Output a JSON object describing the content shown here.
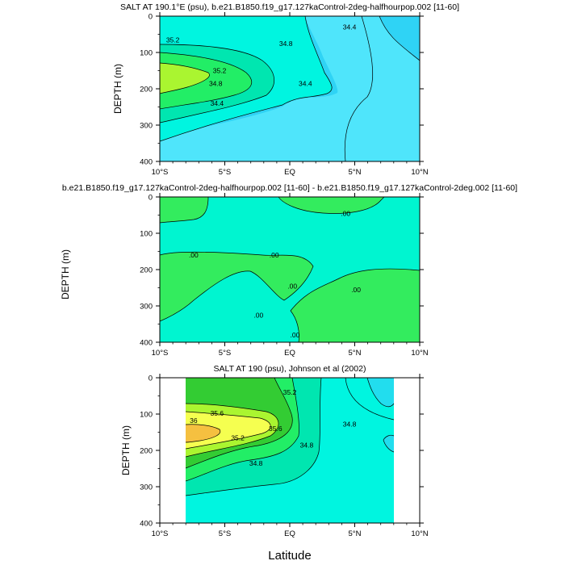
{
  "figure": {
    "xlabel": "Latitude"
  },
  "chart_data": [
    {
      "type": "contour",
      "title": "SALT AT 190.1°E (psu), b.e21.B1850.f19_g17.127kaControl-2deg-halfhourpop.002 [11-60]",
      "xlabel": "",
      "ylabel": "DEPTH (m)",
      "x_ticks": [
        "10°S",
        "5°S",
        "EQ",
        "5°N",
        "10°N"
      ],
      "x_tick_values": [
        -10,
        -5,
        0,
        5,
        10
      ],
      "y_ticks": [
        "0",
        "100",
        "200",
        "300",
        "400"
      ],
      "y_tick_values": [
        0,
        100,
        200,
        300,
        400
      ],
      "xlim": [
        -10,
        10
      ],
      "ylim": [
        400,
        0
      ],
      "contour_labels": [
        {
          "text": "35.2",
          "x": -9.0,
          "y": 65
        },
        {
          "text": "34.8",
          "x": -0.3,
          "y": 75
        },
        {
          "text": "34.4",
          "x": 4.6,
          "y": 30
        },
        {
          "text": "35.2",
          "x": -5.4,
          "y": 150
        },
        {
          "text": "34.8",
          "x": -5.7,
          "y": 185
        },
        {
          "text": "34.4",
          "x": -5.6,
          "y": 240
        },
        {
          "text": "34.4",
          "x": 1.2,
          "y": 185
        }
      ]
    },
    {
      "type": "contour",
      "title": "b.e21.B1850.f19_g17.127kaControl-2deg-halfhourpop.002 [11-60] - b.e21.B1850.f19_g17.127kaControl-2deg.002 [11-60]",
      "xlabel": "",
      "ylabel": "DEPTH (m)",
      "x_ticks": [
        "10°S",
        "5°S",
        "EQ",
        "5°N",
        "10°N"
      ],
      "x_tick_values": [
        -10,
        -5,
        0,
        5,
        10
      ],
      "y_ticks": [
        "0",
        "100",
        "200",
        "300",
        "400"
      ],
      "y_tick_values": [
        0,
        100,
        200,
        300,
        400
      ],
      "xlim": [
        -10,
        10
      ],
      "ylim": [
        400,
        0
      ],
      "contour_labels": [
        {
          "text": ".00",
          "x": 4.3,
          "y": 45
        },
        {
          "text": ".00",
          "x": -7.4,
          "y": 160
        },
        {
          "text": ".00",
          "x": -1.2,
          "y": 160
        },
        {
          "text": ".00",
          "x": 0.2,
          "y": 245
        },
        {
          "text": ".00",
          "x": 5.1,
          "y": 255
        },
        {
          "text": ".00",
          "x": -2.4,
          "y": 325
        },
        {
          "text": ".00",
          "x": 0.4,
          "y": 380
        }
      ]
    },
    {
      "type": "contour",
      "title": "SALT AT 190 (psu), Johnson et al (2002)",
      "xlabel": "",
      "ylabel": "DEPTH (m)",
      "x_ticks": [
        "10°S",
        "5°S",
        "EQ",
        "5°N",
        "10°N"
      ],
      "x_tick_values": [
        -10,
        -5,
        0,
        5,
        10
      ],
      "y_ticks": [
        "0",
        "100",
        "200",
        "300",
        "400"
      ],
      "y_tick_values": [
        0,
        100,
        200,
        300,
        400
      ],
      "xlim": [
        -10,
        10
      ],
      "ylim": [
        400,
        0
      ],
      "data_x_range": [
        -8,
        8
      ],
      "contour_labels": [
        {
          "text": "35.2",
          "x": 0,
          "y": 40
        },
        {
          "text": "35.6",
          "x": -5.6,
          "y": 98
        },
        {
          "text": "36",
          "x": -7.4,
          "y": 118
        },
        {
          "text": "35.6",
          "x": -1.1,
          "y": 140
        },
        {
          "text": "35.2",
          "x": -4.0,
          "y": 165
        },
        {
          "text": "34.8",
          "x": 4.6,
          "y": 128
        },
        {
          "text": "34.8",
          "x": 1.3,
          "y": 185
        },
        {
          "text": "34.8",
          "x": -2.6,
          "y": 235
        }
      ]
    }
  ]
}
